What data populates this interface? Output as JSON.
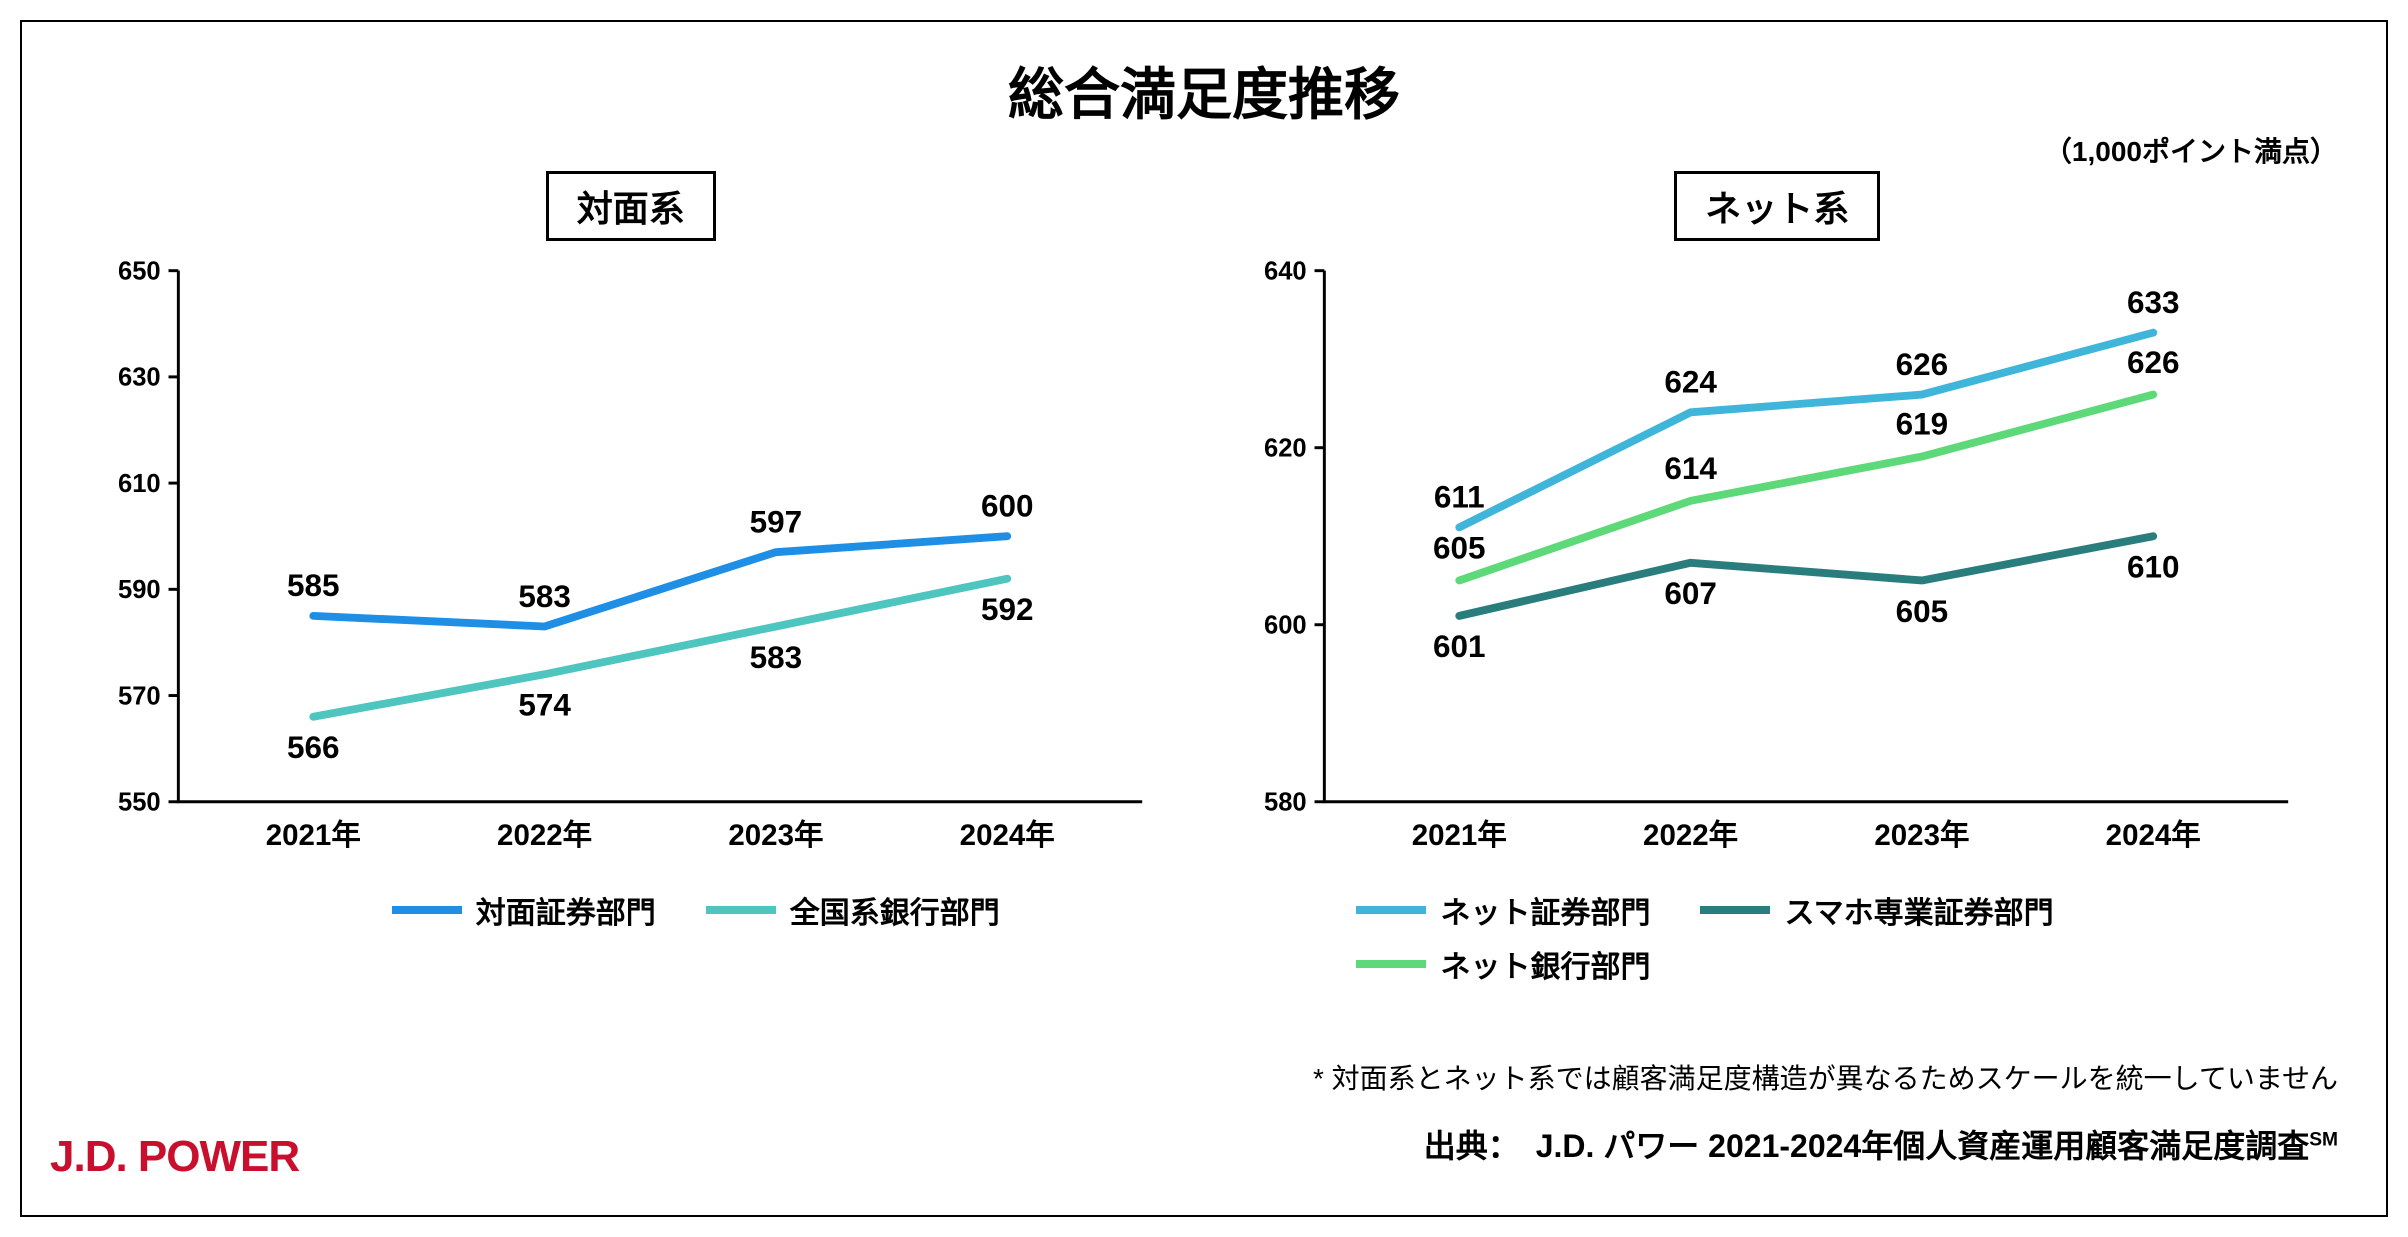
{
  "title": "総合満足度推移",
  "scale_note": "（1,000ポイント満点）",
  "brand": "J.D. POWER",
  "brand_color": "#c8102e",
  "footnote": "* 対面系とネット系では顧客満足度構造が異なるためスケールを統一していません",
  "source": "出典：　J.D. パワー 2021-2024年個人資産運用顧客満足度調査",
  "source_superscript": "SM",
  "background_color": "#ffffff",
  "axis_line_color": "#000000",
  "axis_tick_font_size": 26,
  "data_label_font_size": 32,
  "subtitle_font_size": 36,
  "title_font_size": 56,
  "line_width": 8,
  "left_chart": {
    "type": "line",
    "subtitle": "対面系",
    "x_labels": [
      "2021年",
      "2022年",
      "2023年",
      "2024年"
    ],
    "ylim": [
      550,
      650
    ],
    "ytick_step": 20,
    "series": [
      {
        "name": "対面証券部門",
        "color": "#1f8fe6",
        "values": [
          585,
          583,
          597,
          600
        ]
      },
      {
        "name": "全国系銀行部門",
        "color": "#4fc5c0",
        "values": [
          566,
          574,
          583,
          592
        ]
      }
    ]
  },
  "right_chart": {
    "type": "line",
    "subtitle": "ネット系",
    "x_labels": [
      "2021年",
      "2022年",
      "2023年",
      "2024年"
    ],
    "ylim": [
      580,
      640
    ],
    "ytick_step": 20,
    "series": [
      {
        "name": "ネット証券部門",
        "color": "#3fb6d9",
        "values": [
          611,
          624,
          626,
          633
        ]
      },
      {
        "name": "スマホ専業証券部門",
        "color": "#2a7d7d",
        "values": [
          601,
          607,
          605,
          610
        ]
      },
      {
        "name": "ネット銀行部門",
        "color": "#5ed97a",
        "values": [
          605,
          614,
          619,
          626
        ]
      }
    ]
  }
}
